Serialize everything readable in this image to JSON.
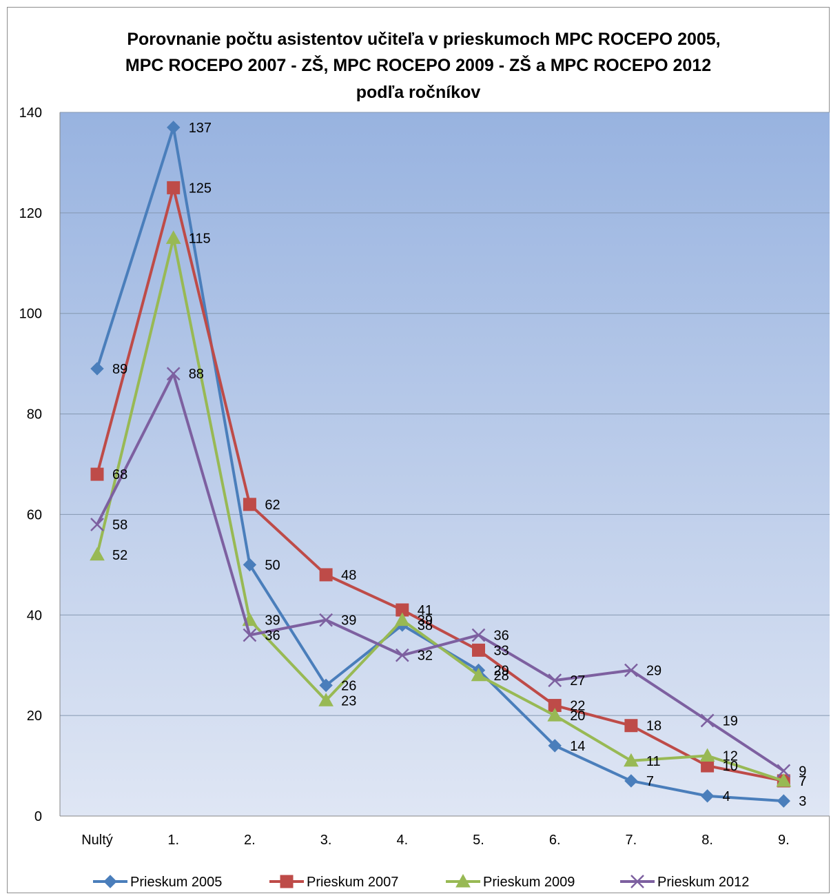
{
  "chart_data": {
    "type": "line",
    "title_lines": [
      "Porovnanie počtu asistentov učiteľa v prieskumoch  MPC ROCEPO 2005,",
      "MPC ROCEPO 2007 - ZŠ, MPC ROCEPO 2009 - ZŠ a MPC ROCEPO 2012",
      "podľa ročníkov"
    ],
    "categories": [
      "Nultý",
      "1.",
      "2.",
      "3.",
      "4.",
      "5.",
      "6.",
      "7.",
      "8.",
      "9."
    ],
    "ylim": [
      0,
      140
    ],
    "yticks": [
      0,
      20,
      40,
      60,
      80,
      100,
      120,
      140
    ],
    "grid": true,
    "legend_position": "bottom",
    "series": [
      {
        "name": "Prieskum 2005",
        "color": "#4a7ebb",
        "marker": "diamond",
        "values": [
          89,
          137,
          50,
          26,
          38,
          29,
          14,
          7,
          4,
          3
        ]
      },
      {
        "name": "Prieskum 2007",
        "color": "#be4b48",
        "marker": "square",
        "values": [
          68,
          125,
          62,
          48,
          41,
          33,
          22,
          18,
          10,
          7
        ]
      },
      {
        "name": "Prieskum 2009",
        "color": "#98b954",
        "marker": "triangle",
        "values": [
          52,
          115,
          39,
          23,
          39,
          28,
          20,
          11,
          12,
          7
        ]
      },
      {
        "name": "Prieskum 2012",
        "color": "#7d60a0",
        "marker": "x",
        "values": [
          58,
          88,
          36,
          39,
          32,
          36,
          27,
          29,
          19,
          9
        ]
      }
    ]
  }
}
